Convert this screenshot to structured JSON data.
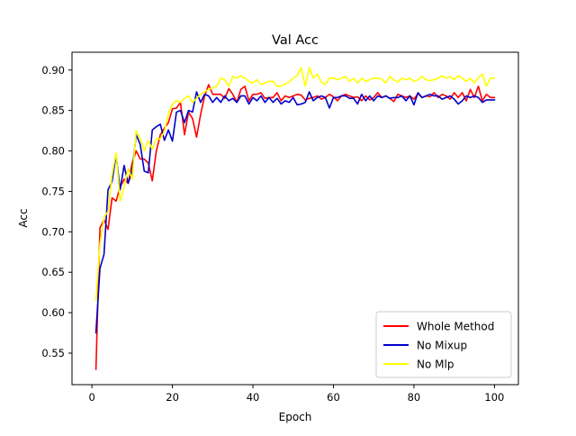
{
  "chart_data": {
    "type": "line",
    "title": "Val Acc",
    "xlabel": "Epoch",
    "ylabel": "Acc",
    "xlim": [
      -4.95,
      105.95
    ],
    "ylim": [
      0.511,
      0.922
    ],
    "xticks": [
      0,
      20,
      40,
      60,
      80,
      100
    ],
    "yticks": [
      0.55,
      0.6,
      0.65,
      0.7,
      0.75,
      0.8,
      0.85,
      0.9
    ],
    "xtick_labels": [
      "0",
      "20",
      "40",
      "60",
      "80",
      "100"
    ],
    "ytick_labels": [
      "0.55",
      "0.60",
      "0.65",
      "0.70",
      "0.75",
      "0.80",
      "0.85",
      "0.90"
    ],
    "legend_position": "lower-right",
    "grid": false,
    "x": [
      1,
      2,
      3,
      4,
      5,
      6,
      7,
      8,
      9,
      10,
      11,
      12,
      13,
      14,
      15,
      16,
      17,
      18,
      19,
      20,
      21,
      22,
      23,
      24,
      25,
      26,
      27,
      28,
      29,
      30,
      31,
      32,
      33,
      34,
      35,
      36,
      37,
      38,
      39,
      40,
      41,
      42,
      43,
      44,
      45,
      46,
      47,
      48,
      49,
      50,
      51,
      52,
      53,
      54,
      55,
      56,
      57,
      58,
      59,
      60,
      61,
      62,
      63,
      64,
      65,
      66,
      67,
      68,
      69,
      70,
      71,
      72,
      73,
      74,
      75,
      76,
      77,
      78,
      79,
      80,
      81,
      82,
      83,
      84,
      85,
      86,
      87,
      88,
      89,
      90,
      91,
      92,
      93,
      94,
      95,
      96,
      97,
      98,
      99,
      100
    ],
    "series": [
      {
        "name": "Whole Method",
        "color": "#ff0000",
        "values": [
          0.53,
          0.705,
          0.715,
          0.703,
          0.742,
          0.738,
          0.755,
          0.765,
          0.76,
          0.785,
          0.8,
          0.79,
          0.79,
          0.785,
          0.763,
          0.8,
          0.82,
          0.828,
          0.835,
          0.852,
          0.853,
          0.86,
          0.82,
          0.848,
          0.84,
          0.817,
          0.845,
          0.868,
          0.882,
          0.87,
          0.87,
          0.87,
          0.865,
          0.877,
          0.87,
          0.86,
          0.876,
          0.88,
          0.862,
          0.87,
          0.87,
          0.872,
          0.865,
          0.866,
          0.866,
          0.872,
          0.862,
          0.868,
          0.866,
          0.868,
          0.87,
          0.869,
          0.863,
          0.865,
          0.866,
          0.868,
          0.864,
          0.866,
          0.87,
          0.867,
          0.862,
          0.868,
          0.87,
          0.868,
          0.866,
          0.867,
          0.862,
          0.868,
          0.863,
          0.866,
          0.872,
          0.866,
          0.868,
          0.865,
          0.861,
          0.87,
          0.868,
          0.866,
          0.868,
          0.864,
          0.871,
          0.866,
          0.868,
          0.867,
          0.872,
          0.866,
          0.87,
          0.868,
          0.864,
          0.872,
          0.866,
          0.872,
          0.862,
          0.876,
          0.866,
          0.88,
          0.862,
          0.87,
          0.866,
          0.866
        ]
      },
      {
        "name": "No Mixup",
        "color": "#0000cc",
        "values": [
          0.575,
          0.655,
          0.672,
          0.752,
          0.762,
          0.795,
          0.752,
          0.782,
          0.76,
          0.775,
          0.82,
          0.808,
          0.775,
          0.773,
          0.826,
          0.83,
          0.833,
          0.813,
          0.826,
          0.812,
          0.848,
          0.85,
          0.835,
          0.85,
          0.848,
          0.873,
          0.86,
          0.87,
          0.868,
          0.86,
          0.866,
          0.86,
          0.868,
          0.862,
          0.865,
          0.86,
          0.868,
          0.868,
          0.858,
          0.866,
          0.862,
          0.868,
          0.86,
          0.866,
          0.86,
          0.865,
          0.858,
          0.862,
          0.86,
          0.866,
          0.857,
          0.858,
          0.86,
          0.873,
          0.862,
          0.866,
          0.868,
          0.866,
          0.853,
          0.866,
          0.866,
          0.868,
          0.868,
          0.865,
          0.865,
          0.858,
          0.87,
          0.862,
          0.868,
          0.862,
          0.868,
          0.866,
          0.868,
          0.865,
          0.866,
          0.866,
          0.868,
          0.862,
          0.868,
          0.857,
          0.872,
          0.866,
          0.868,
          0.87,
          0.868,
          0.868,
          0.864,
          0.866,
          0.868,
          0.864,
          0.858,
          0.862,
          0.868,
          0.866,
          0.868,
          0.866,
          0.86,
          0.863,
          0.863,
          0.863
        ]
      },
      {
        "name": "No Mlp",
        "color": "#ffff00",
        "values": [
          0.615,
          0.685,
          0.718,
          0.725,
          0.77,
          0.798,
          0.738,
          0.755,
          0.778,
          0.765,
          0.825,
          0.815,
          0.8,
          0.813,
          0.802,
          0.815,
          0.815,
          0.824,
          0.846,
          0.858,
          0.862,
          0.86,
          0.865,
          0.868,
          0.86,
          0.865,
          0.87,
          0.873,
          0.876,
          0.878,
          0.88,
          0.89,
          0.888,
          0.88,
          0.892,
          0.89,
          0.893,
          0.89,
          0.886,
          0.884,
          0.888,
          0.882,
          0.884,
          0.886,
          0.886,
          0.88,
          0.88,
          0.883,
          0.885,
          0.89,
          0.893,
          0.903,
          0.88,
          0.903,
          0.89,
          0.895,
          0.885,
          0.882,
          0.89,
          0.89,
          0.888,
          0.89,
          0.892,
          0.886,
          0.89,
          0.884,
          0.89,
          0.886,
          0.888,
          0.89,
          0.89,
          0.889,
          0.884,
          0.892,
          0.888,
          0.885,
          0.89,
          0.888,
          0.89,
          0.886,
          0.888,
          0.892,
          0.888,
          0.887,
          0.888,
          0.89,
          0.893,
          0.89,
          0.892,
          0.888,
          0.893,
          0.89,
          0.886,
          0.89,
          0.884,
          0.89,
          0.895,
          0.88,
          0.89,
          0.89
        ]
      }
    ]
  }
}
